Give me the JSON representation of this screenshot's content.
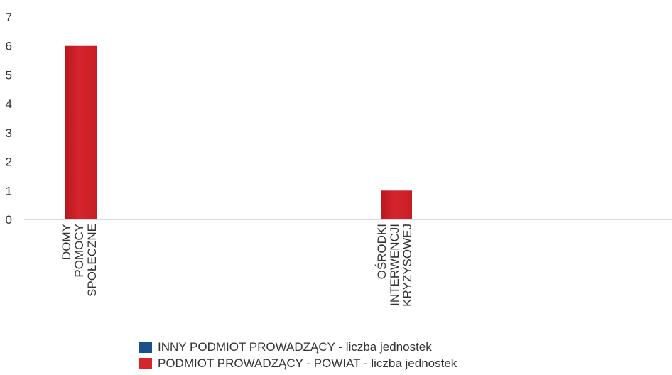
{
  "chart_data": {
    "type": "bar",
    "categories": [
      [
        "DOMY",
        "POMOCY",
        "SPOŁECZNE"
      ],
      [
        "OŚRODKI",
        "INTERWENCJI",
        "KRYZYSOWEJ"
      ]
    ],
    "series": [
      {
        "name": "INNY PODMIOT PROWADZĄCY - liczba jednostek",
        "color": "#1a4f8b",
        "values": [
          0,
          0
        ]
      },
      {
        "name": "PODMIOT PROWADZĄCY - POWIAT - liczba jednostek",
        "color": "#d6252d",
        "values": [
          6,
          1
        ]
      }
    ],
    "ylim": [
      0,
      7
    ],
    "yticks": [
      "0",
      "1",
      "2",
      "3",
      "4",
      "5",
      "6",
      "7"
    ],
    "grid": false,
    "legend": "bottom"
  }
}
